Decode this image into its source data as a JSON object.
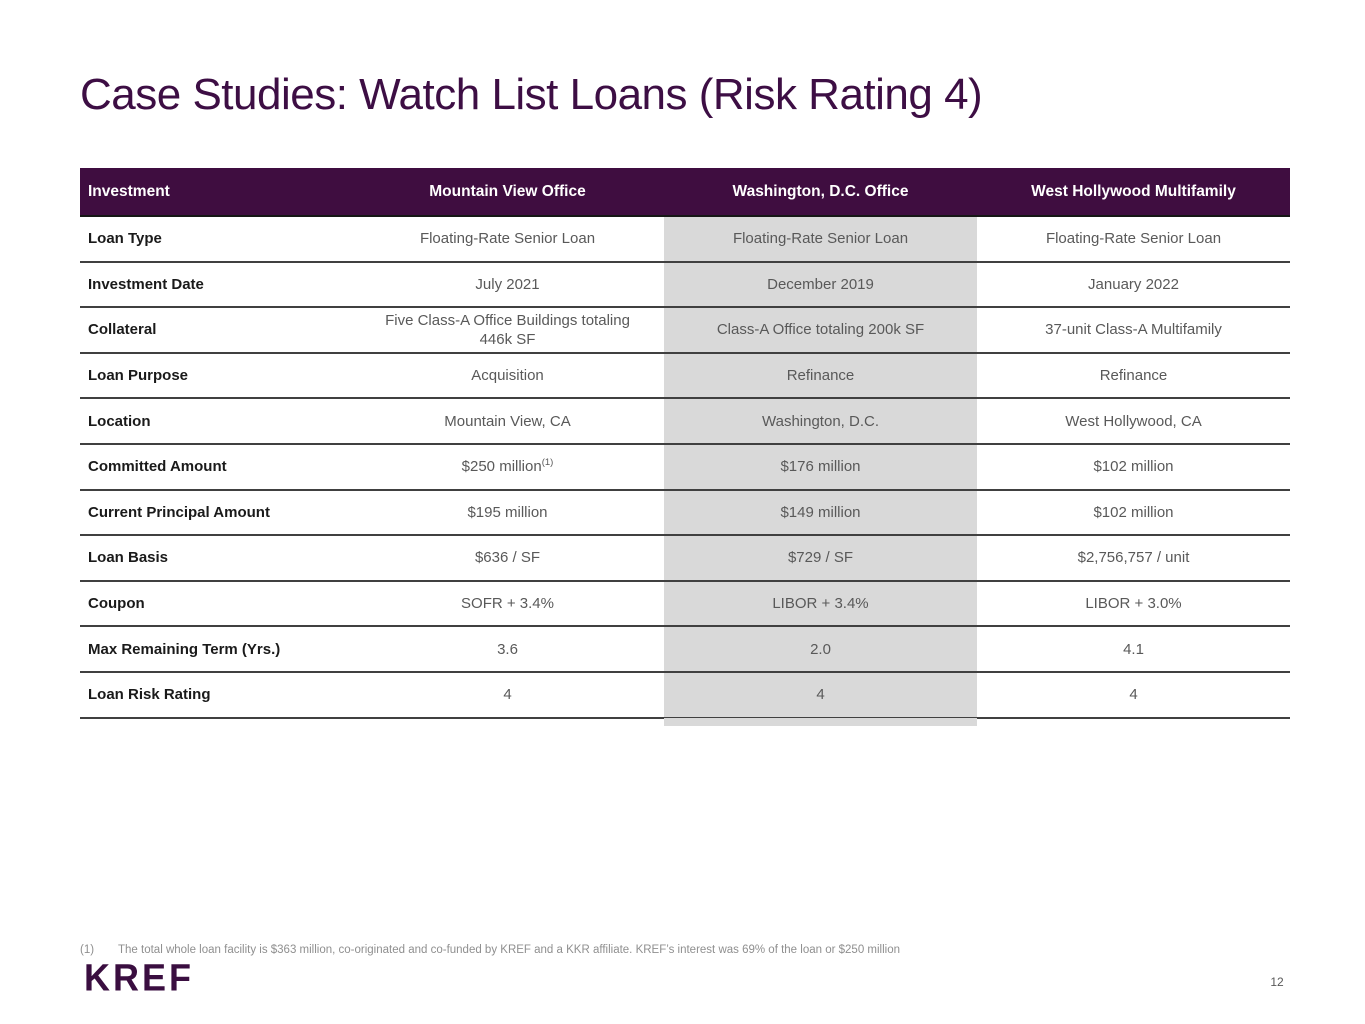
{
  "slide": {
    "title": "Case Studies: Watch List Loans (Risk Rating 4)",
    "page_number": "12",
    "logo_text": "KREF",
    "footnote": {
      "marker": "(1)",
      "text": "The total whole loan facility is $363 million, co-originated and co-funded by KREF and a KKR affiliate. KREF’s interest was 69% of the loan or $250 million"
    }
  },
  "colors": {
    "title": "#3d0e44",
    "header_bg": "#3f0d40",
    "header_text": "#ffffff",
    "row_label": "#1a1a1a",
    "value_text": "#595959",
    "shaded_column_bg": "#d9d9d9",
    "row_border": "#404040",
    "footnote_text": "#8f8f8f",
    "logo": "#3a0e40",
    "page_number": "#595959"
  },
  "table": {
    "header": [
      "Investment",
      "Mountain View Office",
      "Washington, D.C. Office",
      "West Hollywood Multifamily"
    ],
    "highlighted_column_index": 1,
    "rows": [
      {
        "label": "Loan Type",
        "values": [
          "Floating-Rate Senior Loan",
          "Floating-Rate Senior Loan",
          "Floating-Rate Senior Loan"
        ]
      },
      {
        "label": "Investment Date",
        "values": [
          "July 2021",
          "December 2019",
          "January 2022"
        ]
      },
      {
        "label": "Collateral",
        "values": [
          "Five Class-A Office Buildings totaling 446k SF",
          "Class-A Office totaling 200k SF",
          "37-unit Class-A Multifamily"
        ]
      },
      {
        "label": "Loan Purpose",
        "values": [
          "Acquisition",
          "Refinance",
          "Refinance"
        ]
      },
      {
        "label": "Location",
        "values": [
          "Mountain View, CA",
          "Washington, D.C.",
          "West Hollywood, CA"
        ]
      },
      {
        "label": "Committed Amount",
        "values": [
          "$250 million",
          "$176 million",
          "$102 million"
        ],
        "footnote_refs": [
          "(1)",
          "",
          ""
        ]
      },
      {
        "label": "Current Principal Amount",
        "values": [
          "$195 million",
          "$149 million",
          "$102 million"
        ]
      },
      {
        "label": "Loan Basis",
        "values": [
          "$636 / SF",
          "$729 / SF",
          "$2,756,757 / unit"
        ]
      },
      {
        "label": "Coupon",
        "values": [
          "SOFR + 3.4%",
          "LIBOR + 3.4%",
          "LIBOR + 3.0%"
        ]
      },
      {
        "label": "Max Remaining Term (Yrs.)",
        "values": [
          "3.6",
          "2.0",
          "4.1"
        ]
      },
      {
        "label": "Loan Risk Rating",
        "values": [
          "4",
          "4",
          "4"
        ]
      }
    ]
  }
}
